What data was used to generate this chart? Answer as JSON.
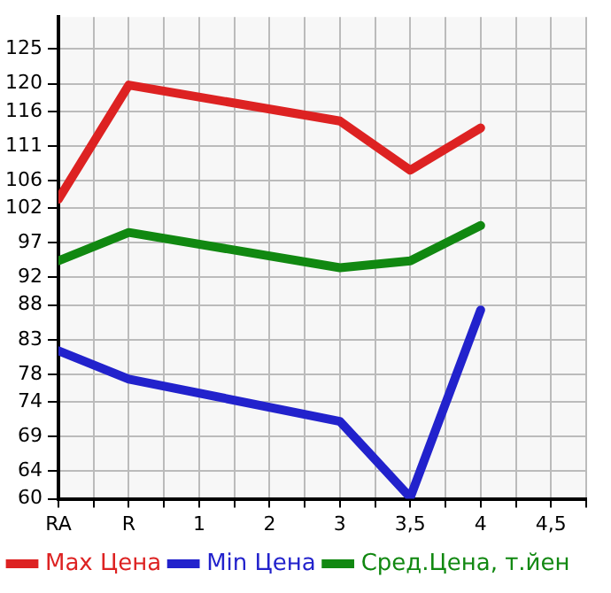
{
  "chart_data": {
    "type": "line",
    "categories": [
      "RA",
      "R",
      "1",
      "2",
      "3",
      "3,5",
      "4",
      "4,5"
    ],
    "series": [
      {
        "name": "Max Цена",
        "color": "#dd2222",
        "values": [
          103.3,
          119.8,
          null,
          null,
          114.6,
          107.5,
          113.6,
          null
        ]
      },
      {
        "name": "Min Цена",
        "color": "#2222cc",
        "values": [
          81.4,
          77.3,
          null,
          null,
          71.2,
          60.2,
          87.3,
          null
        ]
      },
      {
        "name": "Сред.Цена, т.йен",
        "color": "#118811",
        "values": [
          94.4,
          98.5,
          null,
          null,
          93.4,
          94.4,
          99.5,
          null
        ]
      }
    ],
    "ylim": [
      60,
      129.64
    ],
    "yticks": [
      60,
      64,
      69,
      74,
      78,
      83,
      88,
      92,
      97,
      102,
      106,
      111,
      116,
      120,
      125
    ],
    "grid": true,
    "legend": "bottom",
    "marker": "none",
    "line_style": "solid"
  }
}
